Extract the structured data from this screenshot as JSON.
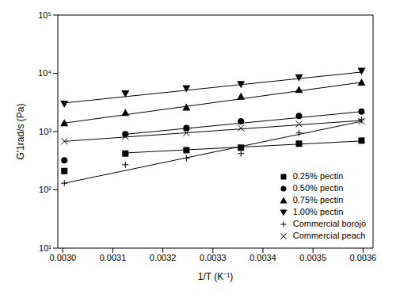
{
  "chart_data": {
    "type": "scatter",
    "xlabel": "1/T (K⁻¹)",
    "ylabel": "G'1rad/s (Pa)",
    "log": "y",
    "grid": false,
    "legend": "lower right",
    "xlim": [
      0.00299,
      0.00362
    ],
    "ylim": [
      10,
      100000
    ],
    "xticks": [
      {
        "value": 0.003,
        "label": "0.0030"
      },
      {
        "value": 0.0031,
        "label": "0.0031"
      },
      {
        "value": 0.0032,
        "label": "0.0032"
      },
      {
        "value": 0.0033,
        "label": "0.0033"
      },
      {
        "value": 0.0034,
        "label": "0.0034"
      },
      {
        "value": 0.0035,
        "label": "0.0035"
      },
      {
        "value": 0.0036,
        "label": "0.0036"
      }
    ],
    "yticks": [
      {
        "value": 10,
        "label": "10¹"
      },
      {
        "value": 100,
        "label": "10²"
      },
      {
        "value": 1000,
        "label": "10³"
      },
      {
        "value": 10000,
        "label": "10⁴"
      },
      {
        "value": 100000,
        "label": "10⁵"
      }
    ],
    "series": [
      {
        "name": "0.25% pectin",
        "color": "#000000",
        "marker": "square",
        "x": [
          0.003003,
          0.003125,
          0.003247,
          0.003356,
          0.003472,
          0.003597
        ],
        "values": [
          210,
          420,
          480,
          530,
          620,
          700
        ],
        "fit": {
          "x": [
            0.003125,
            0.003597
          ],
          "values": [
            430,
            690
          ]
        }
      },
      {
        "name": "0.50% pectin",
        "color": "#000000",
        "marker": "circle",
        "x": [
          0.003003,
          0.003125,
          0.003247,
          0.003356,
          0.003472,
          0.003597
        ],
        "values": [
          320,
          900,
          1150,
          1500,
          1850,
          2200
        ],
        "fit": {
          "x": [
            0.003125,
            0.003597
          ],
          "values": [
            900,
            2200
          ]
        }
      },
      {
        "name": "0.75% pectin",
        "color": "#000000",
        "marker": "triangle",
        "x": [
          0.003003,
          0.003125,
          0.003247,
          0.003356,
          0.003472,
          0.003597
        ],
        "values": [
          1400,
          2100,
          2600,
          4000,
          5200,
          7000
        ],
        "fit": {
          "x": [
            0.003003,
            0.003597
          ],
          "values": [
            1400,
            7000
          ]
        }
      },
      {
        "name": "1.00% pectin",
        "color": "#000000",
        "marker": "triangle_down",
        "x": [
          0.003003,
          0.003125,
          0.003247,
          0.003356,
          0.003472,
          0.003597
        ],
        "values": [
          3000,
          4500,
          5500,
          6500,
          8500,
          11000
        ],
        "fit": {
          "x": [
            0.003003,
            0.003597
          ],
          "values": [
            3100,
            10500
          ]
        }
      },
      {
        "name": "Commercial borojó",
        "color": "#000000",
        "marker": "plus",
        "x": [
          0.003003,
          0.003125,
          0.003247,
          0.003356,
          0.003472,
          0.003597
        ],
        "values": [
          130,
          270,
          350,
          420,
          950,
          1600
        ],
        "fit": {
          "x": [
            0.003003,
            0.003597
          ],
          "values": [
            130,
            1500
          ]
        }
      },
      {
        "name": "Commercial peach",
        "color": "#000000",
        "marker": "x",
        "x": [
          0.003003,
          0.003125,
          0.003247,
          0.003356,
          0.003472,
          0.003597
        ],
        "values": [
          680,
          820,
          950,
          1150,
          1350,
          1500
        ],
        "fit": {
          "x": [
            0.003003,
            0.003597
          ],
          "values": [
            680,
            1550
          ]
        }
      }
    ]
  }
}
